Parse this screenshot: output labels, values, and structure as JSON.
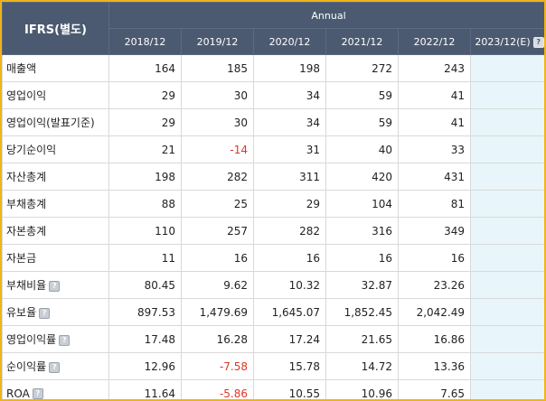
{
  "table": {
    "corner_label": "IFRS(별도)",
    "group_label": "Annual",
    "years": [
      "2018/12",
      "2019/12",
      "2020/12",
      "2021/12",
      "2022/12",
      "2023/12(E)"
    ],
    "rows": [
      {
        "label": "매출액",
        "help": false,
        "values": [
          "164",
          "185",
          "198",
          "272",
          "243",
          ""
        ]
      },
      {
        "label": "영업이익",
        "help": false,
        "values": [
          "29",
          "30",
          "34",
          "59",
          "41",
          ""
        ]
      },
      {
        "label": "영업이익(발표기준)",
        "help": false,
        "values": [
          "29",
          "30",
          "34",
          "59",
          "41",
          ""
        ]
      },
      {
        "label": "당기순이익",
        "help": false,
        "values": [
          "21",
          "-14",
          "31",
          "40",
          "33",
          ""
        ]
      },
      {
        "label": "자산총계",
        "help": false,
        "values": [
          "198",
          "282",
          "311",
          "420",
          "431",
          ""
        ]
      },
      {
        "label": "부채총계",
        "help": false,
        "values": [
          "88",
          "25",
          "29",
          "104",
          "81",
          ""
        ]
      },
      {
        "label": "자본총계",
        "help": false,
        "values": [
          "110",
          "257",
          "282",
          "316",
          "349",
          ""
        ]
      },
      {
        "label": "자본금",
        "help": false,
        "values": [
          "11",
          "16",
          "16",
          "16",
          "16",
          ""
        ]
      },
      {
        "label": "부채비율",
        "help": true,
        "values": [
          "80.45",
          "9.62",
          "10.32",
          "32.87",
          "23.26",
          ""
        ]
      },
      {
        "label": "유보율",
        "help": true,
        "values": [
          "897.53",
          "1,479.69",
          "1,645.07",
          "1,852.45",
          "2,042.49",
          ""
        ]
      },
      {
        "label": "영업이익률",
        "help": true,
        "values": [
          "17.48",
          "16.28",
          "17.24",
          "21.65",
          "16.86",
          ""
        ]
      },
      {
        "label": "순이익률",
        "help": true,
        "values": [
          "12.96",
          "-7.58",
          "15.78",
          "14.72",
          "13.36",
          ""
        ]
      },
      {
        "label": "ROA",
        "help": true,
        "values": [
          "11.64",
          "-5.86",
          "10.55",
          "10.96",
          "7.65",
          ""
        ]
      }
    ]
  },
  "colors": {
    "header_bg": "#4b5a70",
    "header_text": "#ffffff",
    "negative": "#e0342a",
    "estimate_bg": "#e8f6fb",
    "frame_border": "#f0b418"
  },
  "icons": {
    "help": "question-mark-icon"
  }
}
